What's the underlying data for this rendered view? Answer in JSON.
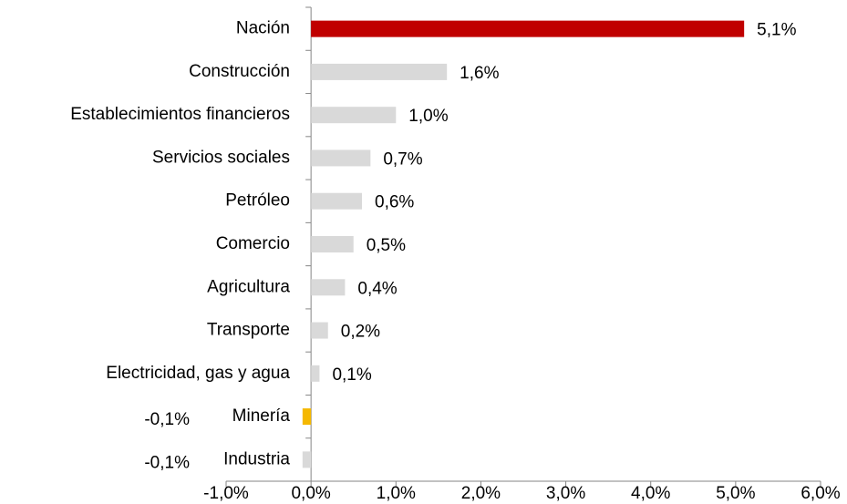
{
  "chart_data": {
    "type": "barh",
    "categories": [
      "Nación",
      "Construcción",
      "Establecimientos financieros",
      "Servicios sociales",
      "Petróleo",
      "Comercio",
      "Agricultura",
      "Transporte",
      "Electricidad, gas y agua",
      "Minería",
      "Industria"
    ],
    "values": [
      5.1,
      1.6,
      1.0,
      0.7,
      0.6,
      0.5,
      0.4,
      0.2,
      0.1,
      -0.1,
      -0.1
    ],
    "value_labels": [
      "5,1%",
      "1,6%",
      "1,0%",
      "0,7%",
      "0,6%",
      "0,5%",
      "0,4%",
      "0,2%",
      "0,1%",
      "-0,1%",
      "-0,1%"
    ],
    "colors": [
      "#c00000",
      "#d9d9d9",
      "#d9d9d9",
      "#d9d9d9",
      "#d9d9d9",
      "#d9d9d9",
      "#d9d9d9",
      "#d9d9d9",
      "#d9d9d9",
      "#f5b800",
      "#d9d9d9"
    ],
    "xlim": [
      -1,
      6
    ],
    "xticks": [
      {
        "value": -1,
        "label": "-1,0%"
      },
      {
        "value": 0,
        "label": "0,0%"
      },
      {
        "value": 1,
        "label": "1,0%"
      },
      {
        "value": 2,
        "label": "2,0%"
      },
      {
        "value": 3,
        "label": "3,0%"
      },
      {
        "value": 4,
        "label": "4,0%"
      },
      {
        "value": 5,
        "label": "5,0%"
      },
      {
        "value": 6,
        "label": "6,0%"
      }
    ]
  }
}
